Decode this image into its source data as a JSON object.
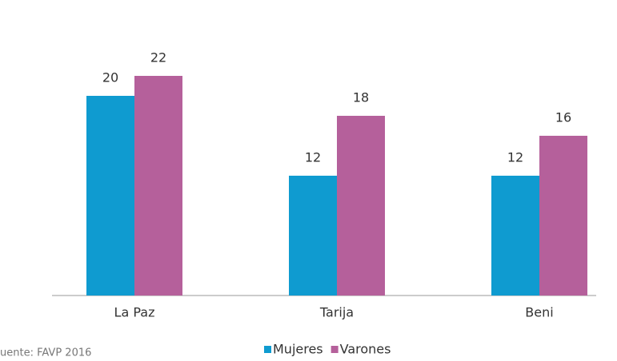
{
  "chart_data": {
    "type": "bar",
    "categories": [
      "La Paz",
      "Tarija",
      "Beni"
    ],
    "series": [
      {
        "name": "Mujeres",
        "color": "#0f9bd0",
        "values": [
          20,
          12,
          12
        ]
      },
      {
        "name": "Varones",
        "color": "#b5609b",
        "values": [
          22,
          18,
          16
        ]
      }
    ],
    "ylim": [
      0,
      24
    ],
    "source": "uente: FAVP 2016"
  }
}
